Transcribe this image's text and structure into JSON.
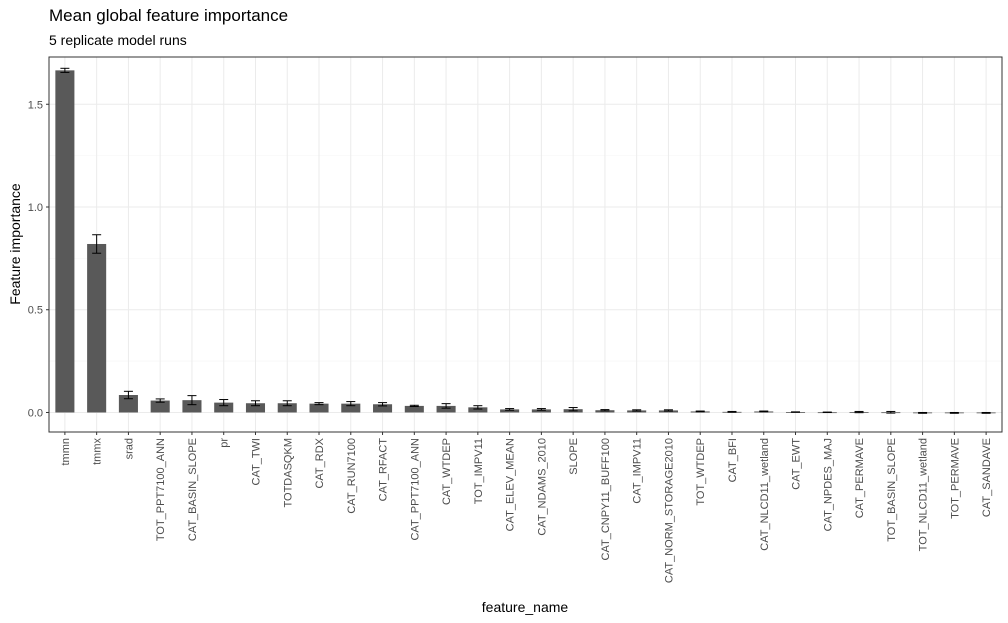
{
  "chart_data": {
    "type": "bar",
    "title": "Mean global feature importance",
    "subtitle": "5 replicate model runs",
    "xlabel": "feature_name",
    "ylabel": "Feature importance",
    "ylim": [
      -0.095,
      1.73
    ],
    "yticks": [
      0.0,
      0.5,
      1.0,
      1.5
    ],
    "ytick_labels": [
      "0.0",
      "0.5",
      "1.0",
      "1.5"
    ],
    "grid": true,
    "colors": {
      "bar": "#595959",
      "grid_major": "#ebebeb",
      "grid_minor": "#f5f5f5",
      "panel_border": "#333333",
      "errorbar": "#000000"
    },
    "categories": [
      "tmmn",
      "tmmx",
      "srad",
      "TOT_PPT7100_ANN",
      "CAT_BASIN_SLOPE",
      "pr",
      "CAT_TWI",
      "TOTDASQKM",
      "CAT_RDX",
      "CAT_RUN7100",
      "CAT_RFACT",
      "CAT_PPT7100_ANN",
      "CAT_WTDEP",
      "TOT_IMPV11",
      "CAT_ELEV_MEAN",
      "CAT_NDAMS_2010",
      "SLOPE",
      "CAT_CNPY11_BUFF100",
      "CAT_IMPV11",
      "CAT_NORM_STORAGE2010",
      "TOT_WTDEP",
      "CAT_BFI",
      "CAT_NLCD11_wetland",
      "CAT_EWT",
      "CAT_NPDES_MAJ",
      "CAT_PERMAVE",
      "TOT_BASIN_SLOPE",
      "TOT_NLCD11_wetland",
      "TOT_PERMAVE",
      "CAT_SANDAVE"
    ],
    "values": [
      1.665,
      0.82,
      0.085,
      0.058,
      0.06,
      0.048,
      0.045,
      0.045,
      0.043,
      0.043,
      0.04,
      0.032,
      0.032,
      0.025,
      0.015,
      0.015,
      0.016,
      0.011,
      0.01,
      0.01,
      0.005,
      0.003,
      0.005,
      0.002,
      0.001,
      0.002,
      0.001,
      -0.002,
      -0.002,
      -0.002
    ],
    "error": [
      0.01,
      0.045,
      0.018,
      0.008,
      0.022,
      0.015,
      0.012,
      0.012,
      0.005,
      0.01,
      0.008,
      0.003,
      0.011,
      0.008,
      0.004,
      0.004,
      0.008,
      0.003,
      0.003,
      0.003,
      0.002,
      0.002,
      0.002,
      0.001,
      0.001,
      0.003,
      0.004,
      0.002,
      0.002,
      0.002
    ]
  }
}
